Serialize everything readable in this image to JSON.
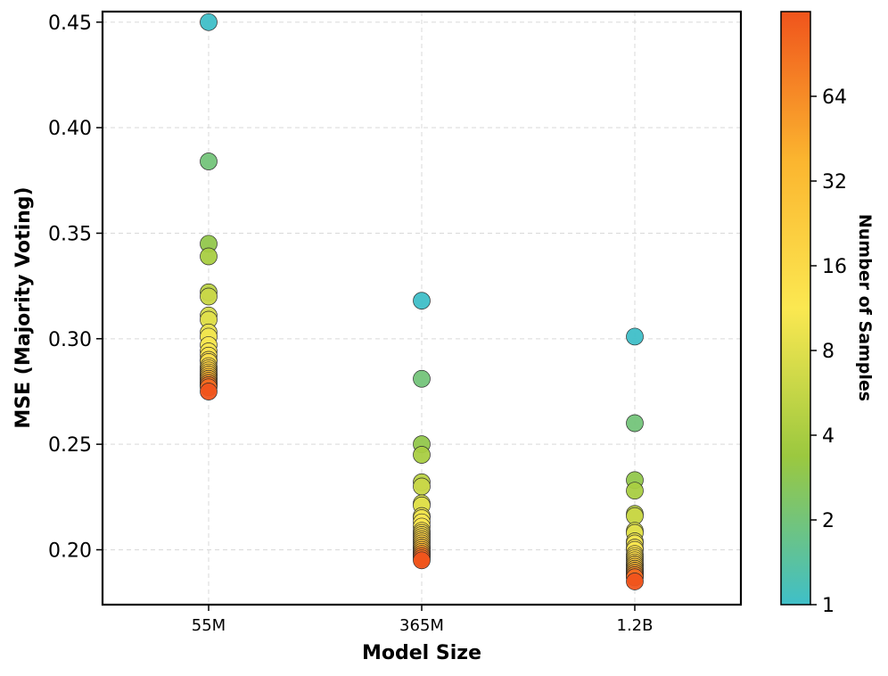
{
  "chart_data": {
    "type": "scatter",
    "xlabel": "Model Size",
    "ylabel": "MSE (Majority Voting)",
    "categories": [
      "55M",
      "365M",
      "1.2B"
    ],
    "ylim": [
      0.174,
      0.455
    ],
    "yticks": [
      0.2,
      0.25,
      0.3,
      0.35,
      0.4,
      0.45
    ],
    "ytick_labels": [
      "0.20",
      "0.25",
      "0.30",
      "0.35",
      "0.40",
      "0.45"
    ],
    "grid": true,
    "colorbar": {
      "label": "Number of Samples",
      "scale": "log2",
      "range": [
        1,
        128
      ],
      "ticks": [
        1,
        2,
        4,
        8,
        16,
        32,
        64
      ],
      "tick_labels": [
        "1",
        "2",
        "4",
        "8",
        "16",
        "32",
        "64"
      ],
      "colors": [
        "#3fbfc8",
        "#9bc83f",
        "#fbe851",
        "#fbb52f",
        "#f0541c"
      ]
    },
    "series": [
      {
        "name": "55M",
        "samples": [
          1,
          2,
          3,
          4,
          5,
          6,
          7,
          8,
          9,
          10,
          11,
          12,
          13,
          14,
          15,
          16,
          18,
          20,
          22,
          24,
          26,
          28,
          32,
          36,
          40,
          48,
          56,
          64,
          80,
          96,
          128
        ],
        "values": [
          0.45,
          0.384,
          0.345,
          0.339,
          0.322,
          0.32,
          0.311,
          0.309,
          0.303,
          0.301,
          0.297,
          0.294,
          0.292,
          0.29,
          0.289,
          0.287,
          0.286,
          0.285,
          0.284,
          0.283,
          0.283,
          0.282,
          0.281,
          0.281,
          0.28,
          0.279,
          0.279,
          0.278,
          0.278,
          0.277,
          0.275
        ]
      },
      {
        "name": "365M",
        "samples": [
          1,
          2,
          3,
          4,
          5,
          6,
          7,
          8,
          9,
          10,
          11,
          12,
          13,
          14,
          15,
          16,
          18,
          20,
          22,
          24,
          26,
          28,
          32,
          36,
          40,
          48,
          56,
          64,
          80,
          96,
          128
        ],
        "values": [
          0.318,
          0.281,
          0.25,
          0.245,
          0.232,
          0.23,
          0.222,
          0.221,
          0.216,
          0.215,
          0.213,
          0.211,
          0.209,
          0.208,
          0.207,
          0.206,
          0.205,
          0.204,
          0.203,
          0.202,
          0.201,
          0.201,
          0.2,
          0.199,
          0.199,
          0.198,
          0.198,
          0.197,
          0.197,
          0.196,
          0.195
        ]
      },
      {
        "name": "1.2B",
        "samples": [
          1,
          2,
          3,
          4,
          5,
          6,
          7,
          8,
          9,
          10,
          11,
          12,
          13,
          14,
          15,
          16,
          18,
          20,
          22,
          24,
          26,
          28,
          32,
          36,
          40,
          48,
          56,
          64,
          80,
          96,
          128
        ],
        "values": [
          0.301,
          0.26,
          0.233,
          0.228,
          0.217,
          0.216,
          0.209,
          0.208,
          0.204,
          0.203,
          0.201,
          0.2,
          0.198,
          0.197,
          0.196,
          0.195,
          0.194,
          0.193,
          0.193,
          0.192,
          0.191,
          0.191,
          0.19,
          0.19,
          0.189,
          0.189,
          0.188,
          0.188,
          0.187,
          0.187,
          0.185
        ]
      }
    ]
  }
}
